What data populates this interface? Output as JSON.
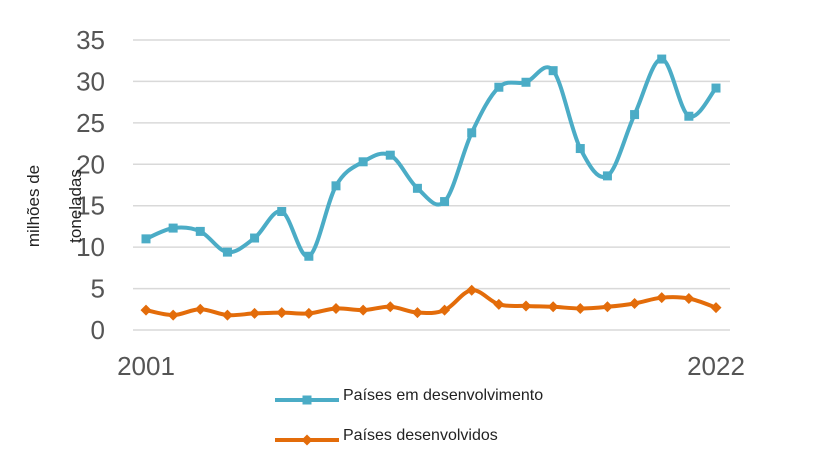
{
  "chart_data": {
    "type": "line",
    "xlabel": "",
    "ylabel_lines": [
      "milhões de",
      "toneladas"
    ],
    "ylim": [
      0,
      35
    ],
    "yticks": [
      "0",
      "5",
      "10",
      "15",
      "20",
      "25",
      "30",
      "35"
    ],
    "x": [
      2001,
      2002,
      2003,
      2004,
      2005,
      2006,
      2007,
      2008,
      2009,
      2010,
      2011,
      2012,
      2013,
      2014,
      2015,
      2016,
      2017,
      2018,
      2019,
      2020,
      2021,
      2022
    ],
    "xtick_labels": [
      "2001",
      "2022"
    ],
    "grid": "horizontal",
    "legend_position": "bottom",
    "series": [
      {
        "name": "Países em desenvolvimento",
        "color": "#4bacc6",
        "marker": "square",
        "values": [
          11.0,
          12.3,
          11.9,
          9.4,
          11.1,
          14.3,
          8.9,
          17.4,
          20.3,
          21.1,
          17.1,
          15.5,
          23.8,
          29.3,
          29.9,
          31.3,
          21.9,
          18.6,
          26.0,
          32.7,
          25.8,
          29.2
        ]
      },
      {
        "name": "Países desenvolvidos",
        "color": "#e36c0a",
        "marker": "diamond",
        "values": [
          2.4,
          1.8,
          2.5,
          1.8,
          2.0,
          2.1,
          2.0,
          2.6,
          2.4,
          2.8,
          2.1,
          2.4,
          4.8,
          3.1,
          2.9,
          2.8,
          2.6,
          2.8,
          3.2,
          3.9,
          3.8,
          2.7
        ]
      }
    ]
  }
}
